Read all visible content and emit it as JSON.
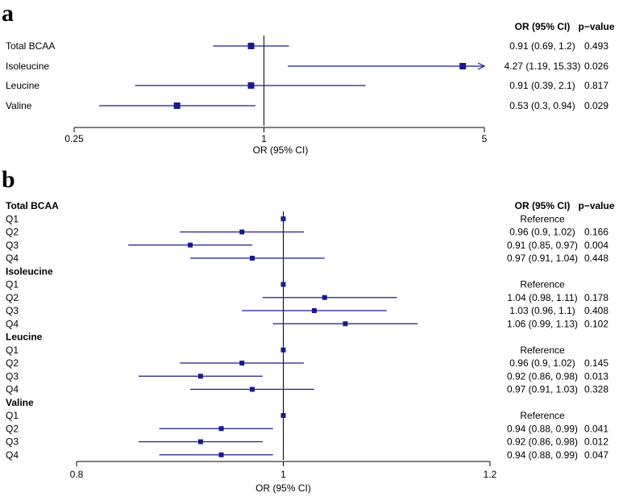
{
  "chart_data": [
    {
      "panel": "a",
      "type": "forest",
      "xlabel": "OR (95% CI)",
      "xlim": [
        0.25,
        5
      ],
      "x_ticks": [
        0.25,
        1,
        5
      ],
      "x_tick_labels": [
        "0.25",
        "1",
        "5"
      ],
      "reference_line": 1,
      "col_or_header": "OR (95% CI)",
      "col_p_header": "p−value",
      "rows": [
        {
          "label": "Total BCAA",
          "or": 0.91,
          "lo": 0.69,
          "hi": 1.2,
          "or_text": "0.91 (0.69, 1.2)",
          "p": "0.493"
        },
        {
          "label": "Isoleucine",
          "or": 4.27,
          "lo": 1.19,
          "hi": 15.33,
          "or_text": "4.27 (1.19, 15.33)",
          "p": "0.026"
        },
        {
          "label": "Leucine",
          "or": 0.91,
          "lo": 0.39,
          "hi": 2.1,
          "or_text": "0.91 (0.39, 2.1)",
          "p": "0.817"
        },
        {
          "label": "Valine",
          "or": 0.53,
          "lo": 0.3,
          "hi": 0.94,
          "or_text": "0.53 (0.3, 0.94)",
          "p": "0.029"
        }
      ]
    },
    {
      "panel": "b",
      "type": "forest",
      "xlabel": "OR (95% CI)",
      "xlim": [
        0.8,
        1.2
      ],
      "x_ticks": [
        0.8,
        1,
        1.2
      ],
      "x_tick_labels": [
        "0.8",
        "1",
        "1.2"
      ],
      "reference_line": 1,
      "col_or_header": "OR (95% CI)",
      "col_p_header": "p−value",
      "groups": [
        {
          "label": "Total BCAA",
          "rows": [
            {
              "label": "Q1",
              "or": 1,
              "lo": null,
              "hi": null,
              "or_text": "Reference",
              "p": ""
            },
            {
              "label": "Q2",
              "or": 0.96,
              "lo": 0.9,
              "hi": 1.02,
              "or_text": "0.96 (0.9, 1.02)",
              "p": "0.166"
            },
            {
              "label": "Q3",
              "or": 0.91,
              "lo": 0.85,
              "hi": 0.97,
              "or_text": "0.91 (0.85, 0.97)",
              "p": "0.004"
            },
            {
              "label": "Q4",
              "or": 0.97,
              "lo": 0.91,
              "hi": 1.04,
              "or_text": "0.97 (0.91, 1.04)",
              "p": "0.448"
            }
          ]
        },
        {
          "label": "Isoleucine",
          "rows": [
            {
              "label": "Q1",
              "or": 1,
              "lo": null,
              "hi": null,
              "or_text": "Reference",
              "p": ""
            },
            {
              "label": "Q2",
              "or": 1.04,
              "lo": 0.98,
              "hi": 1.11,
              "or_text": "1.04 (0.98, 1.11)",
              "p": "0.178"
            },
            {
              "label": "Q3",
              "or": 1.03,
              "lo": 0.96,
              "hi": 1.1,
              "or_text": "1.03 (0.96, 1.1)",
              "p": "0.408"
            },
            {
              "label": "Q4",
              "or": 1.06,
              "lo": 0.99,
              "hi": 1.13,
              "or_text": "1.06 (0.99, 1.13)",
              "p": "0.102"
            }
          ]
        },
        {
          "label": "Leucine",
          "rows": [
            {
              "label": "Q1",
              "or": 1,
              "lo": null,
              "hi": null,
              "or_text": "Reference",
              "p": ""
            },
            {
              "label": "Q2",
              "or": 0.96,
              "lo": 0.9,
              "hi": 1.02,
              "or_text": "0.96 (0.9, 1.02)",
              "p": "0.145"
            },
            {
              "label": "Q3",
              "or": 0.92,
              "lo": 0.86,
              "hi": 0.98,
              "or_text": "0.92 (0.86, 0.98)",
              "p": "0.013"
            },
            {
              "label": "Q4",
              "or": 0.97,
              "lo": 0.91,
              "hi": 1.03,
              "or_text": "0.97 (0.91, 1.03)",
              "p": "0.328"
            }
          ]
        },
        {
          "label": "Valine",
          "rows": [
            {
              "label": "Q1",
              "or": 1,
              "lo": null,
              "hi": null,
              "or_text": "Reference",
              "p": ""
            },
            {
              "label": "Q2",
              "or": 0.94,
              "lo": 0.88,
              "hi": 0.99,
              "or_text": "0.94 (0.88, 0.99)",
              "p": "0.041"
            },
            {
              "label": "Q3",
              "or": 0.92,
              "lo": 0.86,
              "hi": 0.98,
              "or_text": "0.92 (0.86, 0.98)",
              "p": "0.012"
            },
            {
              "label": "Q4",
              "or": 0.94,
              "lo": 0.88,
              "hi": 0.99,
              "or_text": "0.94 (0.88, 0.99)",
              "p": "0.047"
            }
          ]
        }
      ]
    }
  ],
  "colors": {
    "mark": "#1a1a8c",
    "axis": "#000000"
  }
}
